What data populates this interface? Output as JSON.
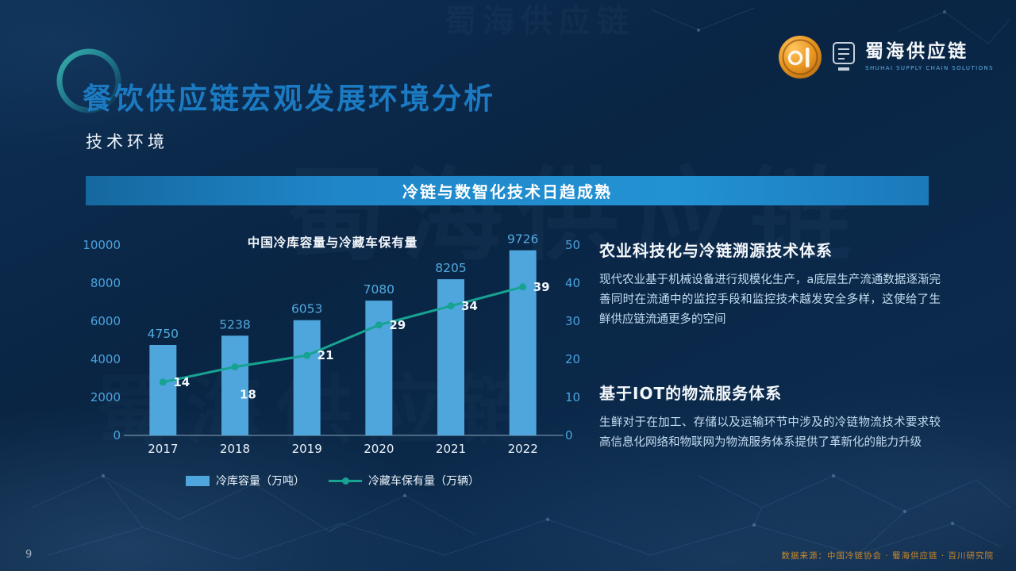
{
  "header": {
    "title": "餐饮供应链宏观发展环境分析",
    "subtitle": "技术环境",
    "logo": {
      "name": "蜀海供应链",
      "tagline": "SHUHAI SUPPLY CHAIN SOLUTIONS"
    }
  },
  "banner": {
    "text": "冷链与数智化技术日趋成熟"
  },
  "chart_data": {
    "type": "combo",
    "title": "中国冷库容量与冷藏车保有量",
    "categories": [
      "2017",
      "2018",
      "2019",
      "2020",
      "2021",
      "2022"
    ],
    "series": [
      {
        "name": "冷库容量（万吨）",
        "type": "bar",
        "axis": "left",
        "color": "#4fa6dd",
        "values": [
          4750,
          5238,
          6053,
          7080,
          8205,
          9726
        ]
      },
      {
        "name": "冷藏车保有量（万辆）",
        "type": "line",
        "axis": "right",
        "color": "#17a392",
        "values": [
          14,
          18,
          21,
          29,
          34,
          39
        ]
      }
    ],
    "left_axis": {
      "min": 0,
      "max": 10000,
      "ticks": [
        0,
        2000,
        4000,
        6000,
        8000,
        10000
      ]
    },
    "right_axis": {
      "min": 0,
      "max": 50,
      "ticks": [
        0,
        10,
        20,
        30,
        40,
        50
      ]
    },
    "legend_position": "bottom",
    "grid": false
  },
  "sections": [
    {
      "heading": "农业科技化与冷链溯源技术体系",
      "body": "现代农业基于机械设备进行规模化生产，a底层生产流通数据逐渐完善同时在流通中的监控手段和监控技术越发安全多样，这使给了生鲜供应链流通更多的空间"
    },
    {
      "heading": "基于IOT的物流服务体系",
      "body": "生鲜对于在加工、存储以及运输环节中涉及的冷链物流技术要求较高信息化网络和物联网为物流服务体系提供了革新化的能力升级"
    }
  ],
  "footer": {
    "page_number": "9",
    "source": "数据来源：中国冷链协会 · 蜀海供应链 · 百川研究院"
  },
  "watermark": "蜀海供应链"
}
